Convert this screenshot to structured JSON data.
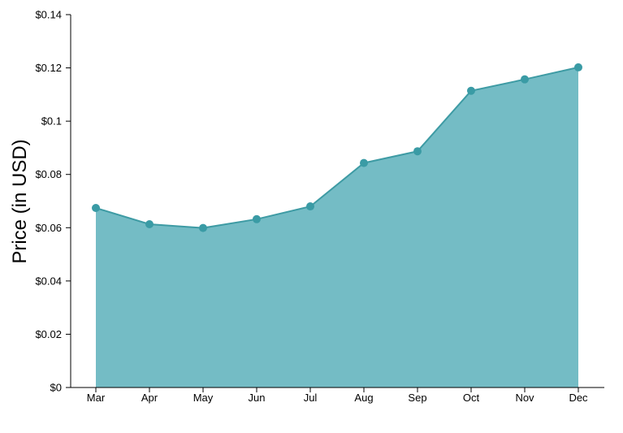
{
  "chart_data": {
    "type": "area",
    "categories": [
      "Mar",
      "Apr",
      "May",
      "Jun",
      "Jul",
      "Aug",
      "Sep",
      "Oct",
      "Nov",
      "Dec"
    ],
    "values": [
      0.0674,
      0.0613,
      0.0599,
      0.0632,
      0.068,
      0.0843,
      0.0887,
      0.1114,
      0.1157,
      0.1202
    ],
    "title": "",
    "xlabel": "",
    "ylabel": "Price (in USD)",
    "ylim": [
      0,
      0.14
    ],
    "y_ticks": [
      0,
      0.02,
      0.04,
      0.06,
      0.08,
      0.1,
      0.12,
      0.14
    ],
    "y_tick_labels": [
      "$0",
      "$0.02",
      "$0.04",
      "$0.06",
      "$0.08",
      "$0.1",
      "$0.12",
      "$0.14"
    ],
    "grid": false,
    "legend": "none",
    "colors": {
      "area_fill": "#74bcc5",
      "line": "#3e9ba4",
      "marker": "#3a9ba5",
      "axis": "#000000"
    }
  }
}
